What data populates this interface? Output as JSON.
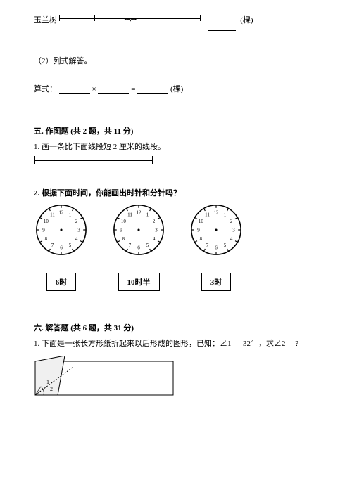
{
  "top": {
    "tree_label": "玉兰树",
    "unit": "(棵)"
  },
  "sub2": {
    "label": "（2）列式解答。",
    "formula_label": "算式：",
    "mult_sign": "×",
    "eq_sign": "=",
    "unit": "(棵)"
  },
  "section5": {
    "title": "五. 作图题 (共 2 题，共 11 分)",
    "q1": "1. 画一条比下面线段短 2 厘米的线段。",
    "q2": "2. 根据下面时间，你能画出时针和分针吗？",
    "clock_labels": [
      "6时",
      "10时半",
      "3时"
    ],
    "clock_numbers": [
      "12",
      "1",
      "2",
      "3",
      "4",
      "5",
      "6",
      "7",
      "8",
      "9",
      "10",
      "11"
    ]
  },
  "section6": {
    "title": "六. 解答题 (共 6 题，共 31 分)",
    "q1": "1. 下面是一张长方形纸折起来以后形成的图形，已知：∠1 ＝ 32゜，求∠2 ＝?",
    "angle1": "1",
    "angle2": "2"
  }
}
